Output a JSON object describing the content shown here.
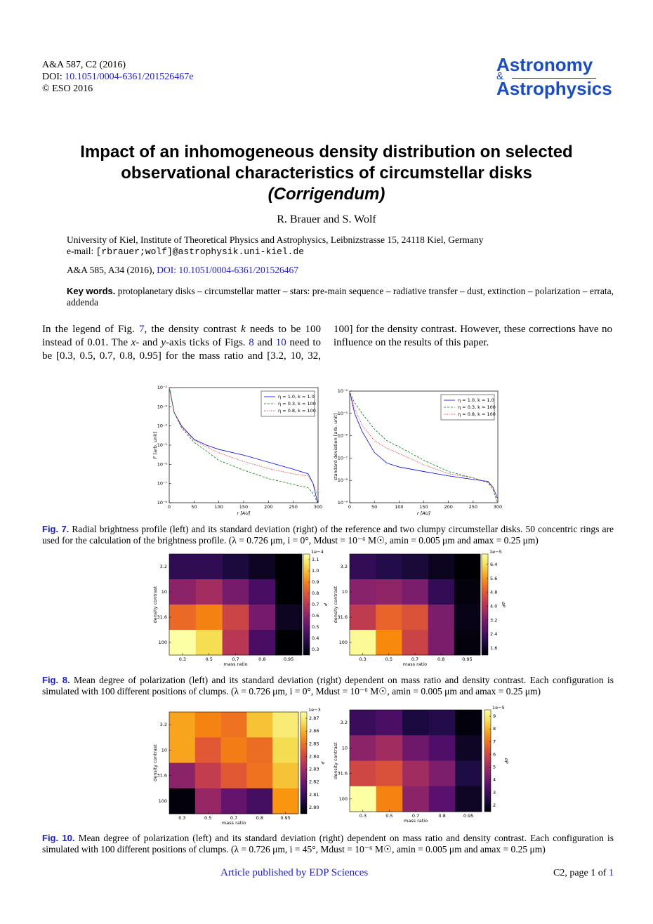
{
  "header": {
    "journal_ref": "A&A 587, C2 (2016)",
    "doi_label": "DOI:",
    "doi": "10.1051/0004-6361/201526467e",
    "copyright": "© ESO 2016",
    "logo_top": "Astronomy",
    "logo_amp": "&",
    "logo_bottom": "Astrophysics"
  },
  "title": {
    "line1": "Impact of an inhomogeneous density distribution on selected",
    "line2": "observational characteristics of circumstellar disks",
    "subtitle": "(Corrigendum)"
  },
  "authors": "R. Brauer and S. Wolf",
  "affiliation": "University of Kiel, Institute of Theoretical Physics and Astrophysics, Leibnizstrasse 15, 24118 Kiel, Germany",
  "email_label": "e-mail:",
  "email": "[rbrauer;wolf]@astrophysik.uni-kiel.de",
  "reference": "A&A 585, A34 (2016),",
  "reference_doi": "DOI: 10.1051/0004-6361/201526467",
  "keywords_label": "Key words.",
  "keywords": "protoplanetary disks – circumstellar matter – stars: pre-main sequence – radiative transfer – dust, extinction – polarization – errata, addenda",
  "body": [
    "In the legend of Fig. ",
    "7",
    ", the density contrast ",
    "k",
    " needs to be 100 instead of 0.01. The ",
    "x",
    "- and ",
    "y",
    "-axis ticks of Figs. ",
    "8",
    " and ",
    "10",
    " need to be [0.3, 0.5, 0.7, 0.8, 0.95] for the mass ratio and [3.2, 10, 32, 100] for the density contrast. However, these corrections have no influence on the results of this paper."
  ],
  "captions": [
    {
      "label": "Fig. 7.",
      "text": "Radial brightness profile (left) and its standard deviation (right) of the reference and two clumpy circumstellar disks. 50 concentric rings are used for the calculation of the brightness profile. (λ = 0.726 μm, i = 0°, Mdust = 10⁻⁶ M☉, amin = 0.005 μm and amax = 0.25 μm)"
    },
    {
      "label": "Fig. 8.",
      "text": "Mean degree of polarization (left) and its standard deviation (right) dependent on mass ratio and density contrast. Each configuration is simulated with 100 different positions of clumps. (λ = 0.726 μm, i = 0°, Mdust = 10⁻⁶ M☉, amin = 0.005 μm and amax = 0.25 μm)"
    },
    {
      "label": "Fig. 10.",
      "text": "Mean degree of polarization (left) and its standard deviation (right) dependent on mass ratio and density contrast. Each configuration is simulated with 100 different positions of clumps. (λ = 0.726 μm, i = 45°, Mdust = 10⁻⁶ M☉, amin = 0.005 μm and amax = 0.25 μm)"
    }
  ],
  "footer": {
    "publisher": "Article published by EDP Sciences",
    "page": "C2, page 1 of ",
    "page_total": "1"
  },
  "chart_data": [
    {
      "type": "line",
      "xlabel": "r [AU]",
      "ylabel": "F [arb. unit]",
      "ylog": true,
      "x": [
        1,
        10,
        25,
        50,
        75,
        100,
        150,
        200,
        250,
        280,
        290,
        299
      ],
      "xlim": [
        0,
        300
      ],
      "xticks": [
        0,
        50,
        100,
        150,
        200,
        250,
        300
      ],
      "ylim": [
        1e-08,
        0.01
      ],
      "yticks": [
        {
          "value": 1e-08,
          "label": "10⁻⁸"
        },
        {
          "value": 1e-07,
          "label": "10⁻⁷"
        },
        {
          "value": 1e-06,
          "label": "10⁻⁶"
        },
        {
          "value": 1e-05,
          "label": "10⁻⁵"
        },
        {
          "value": 0.0001,
          "label": "10⁻⁴"
        },
        {
          "value": 0.001,
          "label": "10⁻³"
        },
        {
          "value": 0.01,
          "label": "10⁻²"
        }
      ],
      "legend": "upper right",
      "series": [
        {
          "name": "η = 1.0, k = 1.0",
          "color": "#0000ff",
          "dash": "solid",
          "values": [
            0.008,
            0.0005,
            0.0001,
            2e-05,
            1e-05,
            6e-06,
            3e-06,
            1.3e-06,
            5.6e-07,
            3.2e-07,
            1e-07,
            1e-08
          ]
        },
        {
          "name": "η = 0.3, k = 100",
          "color": "#008000",
          "dash": "dashed",
          "values": [
            0.008,
            0.0005,
            8e-05,
            1.4e-05,
            5e-06,
            1.6e-06,
            5e-07,
            1.8e-07,
            9e-08,
            6e-08,
            3e-08,
            1e-08
          ]
        },
        {
          "name": "η = 0.8, k = 100",
          "color": "#ff0000",
          "dash": "dotted",
          "values": [
            0.008,
            0.0005,
            9e-05,
            1.8e-05,
            8e-06,
            4e-06,
            1.4e-06,
            6e-07,
            3.2e-07,
            2.5e-07,
            1e-07,
            2.5e-08
          ]
        }
      ]
    },
    {
      "type": "line",
      "xlabel": "r [AU]",
      "ylabel": "standard deviation [arb. unit]",
      "ylog": true,
      "x": [
        1,
        10,
        25,
        50,
        75,
        100,
        150,
        200,
        250,
        280,
        290,
        299
      ],
      "xlim": [
        0,
        300
      ],
      "xticks": [
        0,
        50,
        100,
        150,
        200,
        250,
        300
      ],
      "ylim": [
        1e-09,
        0.0001
      ],
      "yticks": [
        {
          "value": 1e-09,
          "label": "10⁻⁹"
        },
        {
          "value": 1e-08,
          "label": "10⁻⁸"
        },
        {
          "value": 1e-07,
          "label": "10⁻⁷"
        },
        {
          "value": 1e-06,
          "label": "10⁻⁶"
        },
        {
          "value": 1e-05,
          "label": "10⁻⁵"
        },
        {
          "value": 0.0001,
          "label": "10⁻⁴"
        }
      ],
      "legend": "upper right",
      "series": [
        {
          "name": "η = 1.0, k = 1.0",
          "color": "#0000ff",
          "dash": "solid",
          "values": [
            8e-05,
            1e-05,
            1.6e-06,
            1.8e-07,
            6e-08,
            4e-08,
            2.5e-08,
            1.6e-08,
            1.1e-08,
            9e-09,
            5e-09,
            1.6e-09
          ]
        },
        {
          "name": "η = 0.3, k = 100",
          "color": "#008000",
          "dash": "dashed",
          "values": [
            8e-05,
            3e-05,
            1e-05,
            2e-06,
            6e-07,
            3.2e-07,
            8e-08,
            2.5e-08,
            1.3e-08,
            8e-09,
            4e-09,
            1e-09
          ]
        },
        {
          "name": "η = 0.8, k = 100",
          "color": "#ff0000",
          "dash": "dotted",
          "values": [
            8e-05,
            1.6e-05,
            3e-06,
            6e-07,
            2.8e-07,
            1.6e-07,
            5e-08,
            2e-08,
            1.3e-08,
            8e-09,
            5e-09,
            1.6e-09
          ]
        }
      ]
    },
    {
      "type": "heatmap",
      "xlabel": "mass ratio",
      "ylabel": "density contrast",
      "categories": [
        "0.3",
        "0.5",
        "0.7",
        "0.8",
        "0.95"
      ],
      "y_categories": [
        "3.2",
        "10",
        "31.6",
        "100"
      ],
      "values": [
        [
          0.4,
          0.4,
          0.35,
          0.3,
          0.25
        ],
        [
          0.6,
          0.65,
          0.55,
          0.45,
          0.25
        ],
        [
          0.85,
          0.9,
          0.75,
          0.55,
          0.3
        ],
        [
          1.15,
          1.05,
          0.7,
          0.45,
          0.25
        ]
      ],
      "colormap": "inferno",
      "colorbar": {
        "label": "P",
        "offset_label": "1e−4",
        "lim": [
          0.25,
          1.15
        ],
        "ticks": [
          0.3,
          0.4,
          0.5,
          0.6,
          0.7,
          0.8,
          0.9,
          {
            "value": 1,
            "label": "1.0"
          },
          1.1
        ]
      }
    },
    {
      "type": "heatmap",
      "xlabel": "mass ratio",
      "ylabel": "density contrast",
      "categories": [
        "0.3",
        "0.5",
        "0.7",
        "0.8",
        "0.95"
      ],
      "y_categories": [
        "3.2",
        "10",
        "31.6",
        "100"
      ],
      "values": [
        [
          2.2,
          2.0,
          1.8,
          1.5,
          1.2
        ],
        [
          3.4,
          3.5,
          3.2,
          2.2,
          1.3
        ],
        [
          4.2,
          5.0,
          4.7,
          3.2,
          1.4
        ],
        [
          6.9,
          5.5,
          4.4,
          3.2,
          1.3
        ]
      ],
      "colormap": "inferno",
      "colorbar": {
        "label": "σP",
        "offset_label": "1e−5",
        "lim": [
          1.2,
          7.0
        ],
        "ticks": [
          1.6,
          2.4,
          3.2,
          {
            "value": 4,
            "label": "4.0"
          },
          4.8,
          5.6,
          6.4
        ]
      }
    },
    {
      "type": "heatmap",
      "xlabel": "mass ratio",
      "ylabel": "density contrast",
      "categories": [
        "0.3",
        "0.5",
        "0.7",
        "0.8",
        "0.95"
      ],
      "y_categories": [
        "3.2",
        "10",
        "31.6",
        "100"
      ],
      "values": [
        [
          2.858,
          2.853,
          2.85,
          2.862,
          2.87
        ],
        [
          2.858,
          2.845,
          2.852,
          2.849,
          2.866
        ],
        [
          2.826,
          2.837,
          2.845,
          2.85,
          2.862
        ],
        [
          2.796,
          2.828,
          2.818,
          2.812,
          2.856
        ]
      ],
      "colormap": "inferno",
      "colorbar": {
        "label": "P",
        "offset_label": "1e−3",
        "lim": [
          2.795,
          2.875
        ],
        "ticks": [
          {
            "value": 2.8,
            "label": "2.80"
          },
          2.81,
          2.82,
          2.83,
          2.84,
          2.85,
          2.86,
          2.87
        ]
      }
    },
    {
      "type": "heatmap",
      "xlabel": "mass ratio",
      "ylabel": "density contrast",
      "categories": [
        "0.3",
        "0.5",
        "0.7",
        "0.8",
        "0.95"
      ],
      "y_categories": [
        "3.2",
        "10",
        "31.6",
        "100"
      ],
      "values": [
        [
          3,
          3.3,
          2.4,
          2.6,
          1.6
        ],
        [
          4.6,
          5,
          4,
          3.4,
          2
        ],
        [
          6,
          6.3,
          5,
          4.3,
          2.5
        ],
        [
          9.5,
          7.3,
          4.6,
          3.6,
          2
        ]
      ],
      "colormap": "inferno",
      "colorbar": {
        "label": "σP",
        "offset_label": "1e−5",
        "lim": [
          1.5,
          9.5
        ],
        "ticks": [
          2,
          3,
          4,
          5,
          6,
          7,
          8,
          9
        ]
      }
    }
  ]
}
